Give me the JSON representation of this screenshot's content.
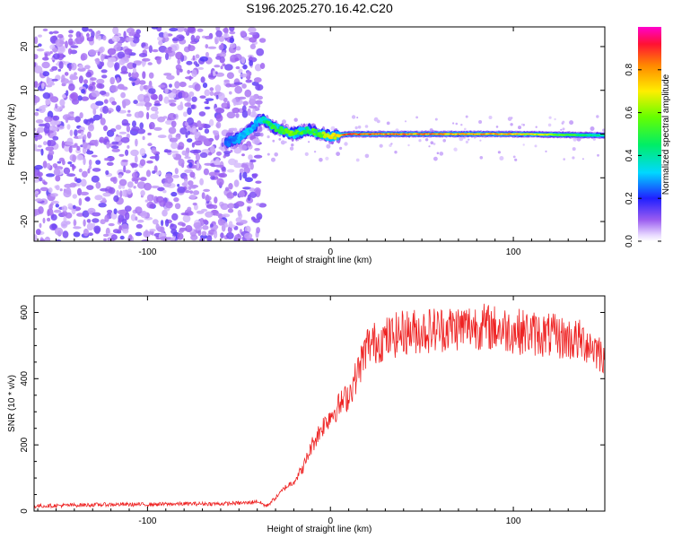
{
  "chart_data": [
    {
      "type": "heatmap",
      "title": "S196.2025.270.16.42.C20",
      "xlabel": "Height of straight line (km)",
      "ylabel": "Frequency (Hz)",
      "xlim": [
        -162,
        150
      ],
      "ylim": [
        -24.5,
        24.5
      ],
      "xticks": [
        -100,
        0,
        100
      ],
      "yticks": [
        -20,
        -10,
        0,
        10,
        20
      ],
      "colorbar": {
        "label": "Normalized spectral amplitude",
        "range": [
          0.0,
          1.0
        ],
        "ticks": [
          0.0,
          0.2,
          0.4,
          0.6,
          0.8
        ],
        "tick_labels": [
          "0.0",
          "0.2",
          "0.4",
          "0.6",
          "0.8"
        ]
      },
      "noise_region": {
        "x": [
          -162,
          -37
        ],
        "amplitude_range": [
          0.1,
          0.3
        ]
      },
      "signal_ridge": {
        "x": [
          -57,
          -50,
          -45,
          -40,
          -37,
          -33,
          -28,
          -20,
          -12,
          -5,
          0,
          10,
          30,
          60,
          100,
          150
        ],
        "frequency": [
          -2.0,
          -1.0,
          0.5,
          2.5,
          3.5,
          2.0,
          1.0,
          0.0,
          1.0,
          0.0,
          -0.5,
          0.0,
          0.0,
          0.0,
          0.0,
          -0.3
        ],
        "amplitude": [
          0.25,
          0.3,
          0.35,
          0.3,
          0.4,
          0.5,
          0.55,
          0.6,
          0.5,
          0.6,
          0.7,
          0.9,
          0.85,
          0.85,
          0.8,
          0.4
        ]
      }
    },
    {
      "type": "line",
      "title": "",
      "xlabel": "Height of straight line (km)",
      "ylabel": "SNR (10 * v/v)",
      "xlim": [
        -162,
        150
      ],
      "ylim": [
        0,
        650
      ],
      "xticks": [
        -100,
        0,
        100
      ],
      "yticks": [
        0,
        200,
        400,
        600
      ],
      "series": [
        {
          "name": "SNR",
          "color": "#ee2222",
          "x": [
            -162,
            -140,
            -120,
            -100,
            -80,
            -60,
            -45,
            -40,
            -35,
            -30,
            -25,
            -20,
            -15,
            -10,
            -5,
            0,
            5,
            10,
            15,
            20,
            30,
            40,
            60,
            80,
            100,
            120,
            140,
            150
          ],
          "y": [
            15,
            18,
            20,
            20,
            22,
            22,
            25,
            30,
            15,
            40,
            70,
            90,
            130,
            200,
            250,
            290,
            320,
            350,
            420,
            500,
            520,
            540,
            550,
            560,
            545,
            530,
            510,
            470
          ]
        }
      ]
    }
  ]
}
